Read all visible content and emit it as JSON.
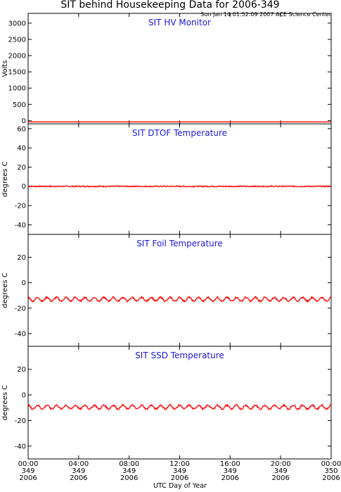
{
  "page": {
    "title": "SIT behind Housekeeping Data for 2006-349",
    "subtitle": "Sun Jan 14 01:52:09 2007 ACE Science Center",
    "x_axis_label": "UTC Day of Year"
  },
  "colors": {
    "data": "#ff0000",
    "title_text": "#1a1adf",
    "axes": "#000000"
  },
  "chart_data": [
    {
      "type": "line",
      "title": "SIT HV Monitor",
      "ylabel": "Volts",
      "ylim": [
        -100,
        3300
      ],
      "yticks": [
        0,
        500,
        1000,
        1500,
        2000,
        2500,
        3000
      ],
      "series": [
        {
          "x_hours": [
            0,
            24
          ],
          "values": [
            -40,
            -40
          ],
          "noise": 0
        }
      ]
    },
    {
      "type": "line",
      "title": "SIT DTOF Temperature",
      "ylabel": "degrees C",
      "ylim": [
        -50,
        65
      ],
      "yticks": [
        -40,
        -20,
        0,
        20,
        40,
        60
      ],
      "series": [
        {
          "x_hours": [
            0,
            24
          ],
          "values": [
            0,
            0
          ],
          "noise": 0.6
        }
      ]
    },
    {
      "type": "line",
      "title": "SIT Foil Temperature",
      "ylabel": "degrees C",
      "ylim": [
        -50,
        38
      ],
      "yticks": [
        -40,
        -20,
        0,
        20
      ],
      "series": [
        {
          "x_hours": [
            0,
            24
          ],
          "mean": -13,
          "amplitude": 1.5,
          "period_hours": 0.75
        }
      ]
    },
    {
      "type": "line",
      "title": "SIT SSD Temperature",
      "ylabel": "degrees C",
      "ylim": [
        -50,
        38
      ],
      "yticks": [
        -40,
        -20,
        0,
        20
      ],
      "series": [
        {
          "x_hours": [
            0,
            24
          ],
          "mean": -9.5,
          "amplitude": 1.5,
          "period_hours": 0.75
        }
      ]
    }
  ],
  "x_axis": {
    "range_hours": [
      0,
      24
    ],
    "ticks": [
      {
        "hour": 0,
        "time": "00:00",
        "doy": "349",
        "year": "2006"
      },
      {
        "hour": 4,
        "time": "04:00",
        "doy": "349",
        "year": "2006"
      },
      {
        "hour": 8,
        "time": "08:00",
        "doy": "349",
        "year": "2006"
      },
      {
        "hour": 12,
        "time": "12:00",
        "doy": "349",
        "year": "2006"
      },
      {
        "hour": 16,
        "time": "16:00",
        "doy": "349",
        "year": "2006"
      },
      {
        "hour": 20,
        "time": "20:00",
        "doy": "349",
        "year": "2006"
      },
      {
        "hour": 24,
        "time": "00:00",
        "doy": "350",
        "year": "2006"
      }
    ]
  }
}
